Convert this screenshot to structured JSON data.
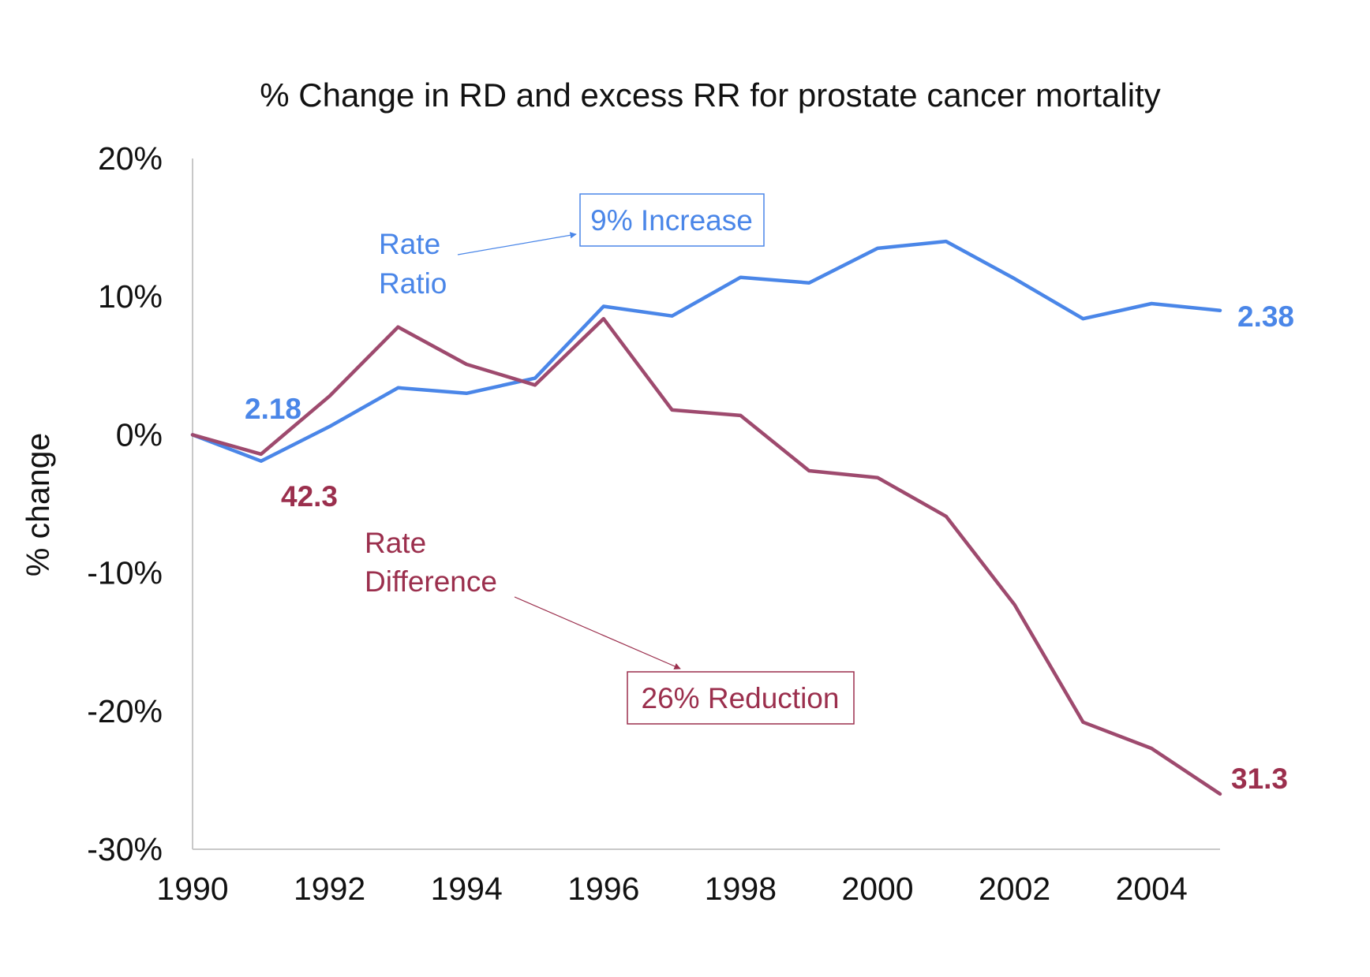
{
  "chart_data": {
    "type": "line",
    "title": "% Change in RD and excess RR for prostate cancer mortality",
    "xlabel": "",
    "ylabel": "% change",
    "xlim": [
      1990,
      2005
    ],
    "ylim": [
      -30,
      20
    ],
    "grid": false,
    "x": [
      1990,
      1991,
      1992,
      1993,
      1994,
      1995,
      1996,
      1997,
      1998,
      1999,
      2000,
      2001,
      2002,
      2003,
      2004,
      2005
    ],
    "xticks": [
      1990,
      1992,
      1994,
      1996,
      1998,
      2000,
      2002,
      2004
    ],
    "xtick_labels": [
      "1990",
      "1992",
      "1994",
      "1996",
      "1998",
      "2000",
      "2002",
      "2004"
    ],
    "yticks": [
      20,
      10,
      0,
      -10,
      -20,
      -30
    ],
    "ytick_labels": [
      "20%",
      "10%",
      "0%",
      "-10%",
      "-20%",
      "-30%"
    ],
    "series": [
      {
        "key": "rr",
        "color": "#4a86e8",
        "values": [
          0,
          -1.9,
          0.6,
          3.4,
          3.0,
          4.1,
          9.3,
          8.6,
          11.4,
          11.0,
          13.5,
          14.0,
          11.3,
          8.4,
          9.5,
          9.0
        ]
      },
      {
        "key": "rd",
        "color": "#9e4a6e",
        "values": [
          0,
          -1.4,
          2.8,
          7.8,
          5.1,
          3.6,
          8.4,
          1.8,
          1.4,
          -2.6,
          -3.1,
          -5.9,
          -12.3,
          -20.8,
          -22.7,
          -26.0
        ]
      }
    ],
    "annotations": {
      "rr_label_line1": "Rate",
      "rr_label_line2": "Ratio",
      "rr_box": "9% Increase",
      "rr_start_value": "2.18",
      "rr_end_value": "2.38",
      "rd_label_line1": "Rate",
      "rd_label_line2": "Difference",
      "rd_box": "26% Reduction",
      "rd_start_value": "42.3",
      "rd_end_value": "31.3",
      "rr_color": "#4a86e8",
      "rd_color": "#9b2f4d"
    }
  }
}
